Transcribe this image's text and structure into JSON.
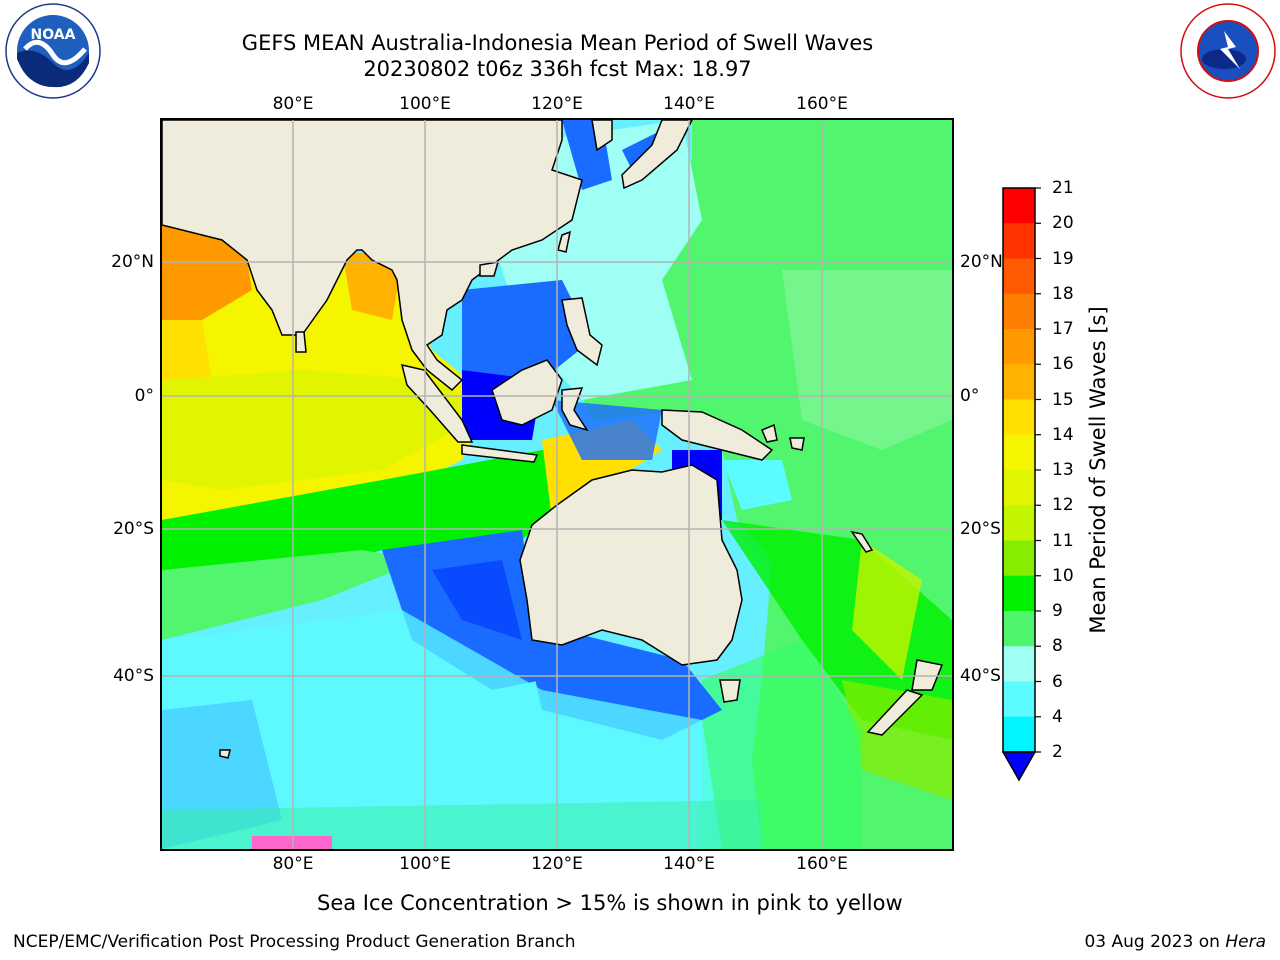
{
  "title": {
    "line1": "GEFS MEAN Australia-Indonesia Mean Period of Swell Waves",
    "line2": "20230802 t06z 336h fcst   Max: 18.97"
  },
  "map": {
    "region": "Australia-Indonesia",
    "variable": "Mean Period of Swell Waves",
    "units": "s",
    "lon_ticks": [
      "80°E",
      "100°E",
      "120°E",
      "140°E",
      "160°E"
    ],
    "lat_ticks": [
      "20°N",
      "0°",
      "20°S",
      "40°S"
    ],
    "lon_range": [
      60,
      180
    ],
    "lat_range": [
      -68,
      41
    ],
    "gridlines": true,
    "colors": {
      "land": "#efecdc",
      "grid": "#b4b4b4",
      "coast": "#000000"
    }
  },
  "colorbar": {
    "title": "Mean Period of Swell Waves [s]",
    "labels": [
      "21",
      "20",
      "19",
      "18",
      "17",
      "16",
      "15",
      "14",
      "13",
      "12",
      "11",
      "10",
      "9",
      "8",
      "6",
      "4",
      "2"
    ],
    "colors_top_to_bottom": [
      "#ff0000",
      "#ff3300",
      "#ff5a00",
      "#ff7d00",
      "#ff9900",
      "#ffb300",
      "#ffe000",
      "#f5f500",
      "#e1f500",
      "#c3f500",
      "#87ec00",
      "#00f000",
      "#50f56e",
      "#9ffff5",
      "#5cfbff",
      "#00f5ff",
      "#0080ff"
    ],
    "extend_color": "#0000ff",
    "extend": "min"
  },
  "note": "Sea Ice Concentration > 15% is shown in pink to yellow",
  "footer": {
    "left": "NCEP/EMC/Verification Post Processing Product Generation Branch",
    "date": "03 Aug 2023 on ",
    "machine": "Hera"
  },
  "logos": {
    "left": {
      "icon": "noaa-logo",
      "text": "NOAA"
    },
    "right": {
      "icon": "national-weather-service-logo",
      "text": "NATIONAL WEATHER SERVICE"
    }
  }
}
